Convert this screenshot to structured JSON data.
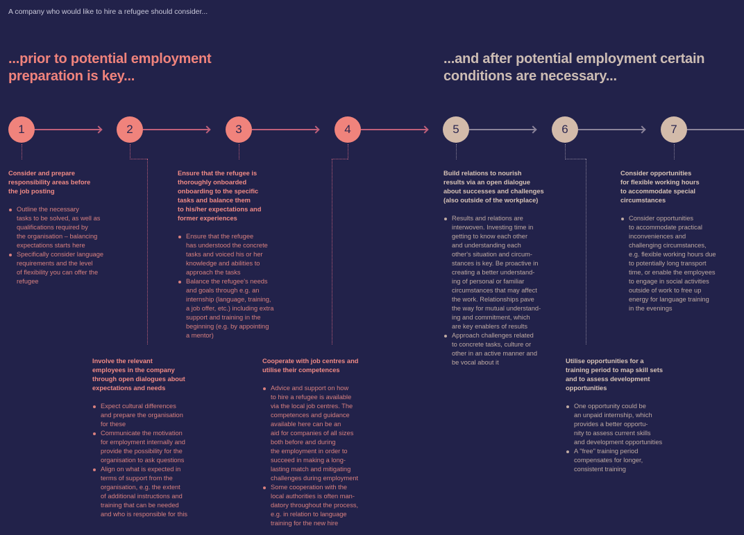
{
  "intro": "A company who would like to hire a refugee should consider...",
  "left_title": "...prior to potential employment\npreparation is key...",
  "right_title": "...and after potential employment certain\nconditions are necessary...",
  "colors": {
    "background": "#22224a",
    "pink": "#f0837c",
    "beige": "#d3bbaa"
  },
  "steps": [
    {
      "number": "1",
      "heading": "Consider and prepare\nresponsibility areas before\nthe job posting",
      "bullets": [
        "Outline the necessary\ntasks to be solved, as well as\nqualifications required by\nthe organisation – balancing\nexpectations starts here",
        "Specifically consider language\nrequirements and the level\nof flexibility you can offer the\nrefugee"
      ]
    },
    {
      "number": "2",
      "heading": "Involve the relevant\nemployees in the company\nthrough open dialogues about\nexpectations and needs",
      "bullets": [
        "Expect cultural differences\nand prepare the organisation\nfor these",
        "Communicate the motivation\nfor employment internally and\nprovide the possibility for the\norganisation to ask questions",
        "Align on what is expected in\nterms of support from the\norganisation, e.g. the extent\nof additional instructions and\ntraining that can be needed\nand who is responsible for this"
      ]
    },
    {
      "number": "3",
      "heading": "Ensure that the refugee is\nthoroughly onboarded\nonboarding to the specific\ntasks and balance them\nto his/her expectations and\nformer experiences",
      "bullets": [
        "Ensure that the refugee\nhas understood the concrete\ntasks and voiced his or her\nknowledge and abilities to\napproach the tasks",
        "Balance the refugee's needs\nand goals through e.g. an\ninternship (language, training,\na job offer, etc.) including extra\nsupport and training in the\nbeginning (e.g. by appointing\na mentor)"
      ]
    },
    {
      "number": "4",
      "heading": "Cooperate with job centres and\nutilise their competences",
      "bullets": [
        "Advice and support on how\nto hire a refugee is available\nvia the local job centres. The\ncompetences and guidance\navailable here can be an\naid for companies of all sizes\nboth before and during\nthe employment in order to\nsucceed in making a long-\nlasting match and mitigating\nchallenges during employment",
        "Some cooperation with the\nlocal authorities is often man-\ndatory throughout the process,\ne.g. in relation to language\ntraining for the new hire"
      ]
    },
    {
      "number": "5",
      "heading": "Build relations to nourish\nresults via an open dialogue\nabout successes and challenges\n(also outside of the workplace)",
      "bullets": [
        "Results and relations are\ninterwoven. Investing time in\ngetting to know each other\nand understanding each\nother's situation and circum-\nstances is key. Be proactive in\ncreating a better understand-\ning of personal or familiar\ncircumstances that may affect\nthe work. Relationships pave\nthe way for mutual understand-\ning and commitment, which\nare key enablers of results",
        "Approach challenges related\nto concrete tasks, culture or\nother in an active manner and\nbe vocal about it"
      ]
    },
    {
      "number": "6",
      "heading": "Utilise opportunities for a\ntraining period to map skill sets\nand to assess development\nopportunities",
      "bullets": [
        "One opportunity could be\nan unpaid internship, which\nprovides a better opportu-\nnity to assess current skills\nand development opportunities",
        "A \"free\" training period\ncompensates for longer,\nconsistent training"
      ]
    },
    {
      "number": "7",
      "heading": "Consider opportunities\nfor flexible working hours\nto accommodate special\ncircumstances",
      "bullets": [
        "Consider opportunities\nto accommodate practical\ninconveniences and\nchallenging circumstances,\ne.g. flexible working hours due\nto potentially long transport\ntime, or enable the employees\nto engage in social activities\noutside of work to free up\nenergy for language training\nin the evenings"
      ]
    }
  ]
}
